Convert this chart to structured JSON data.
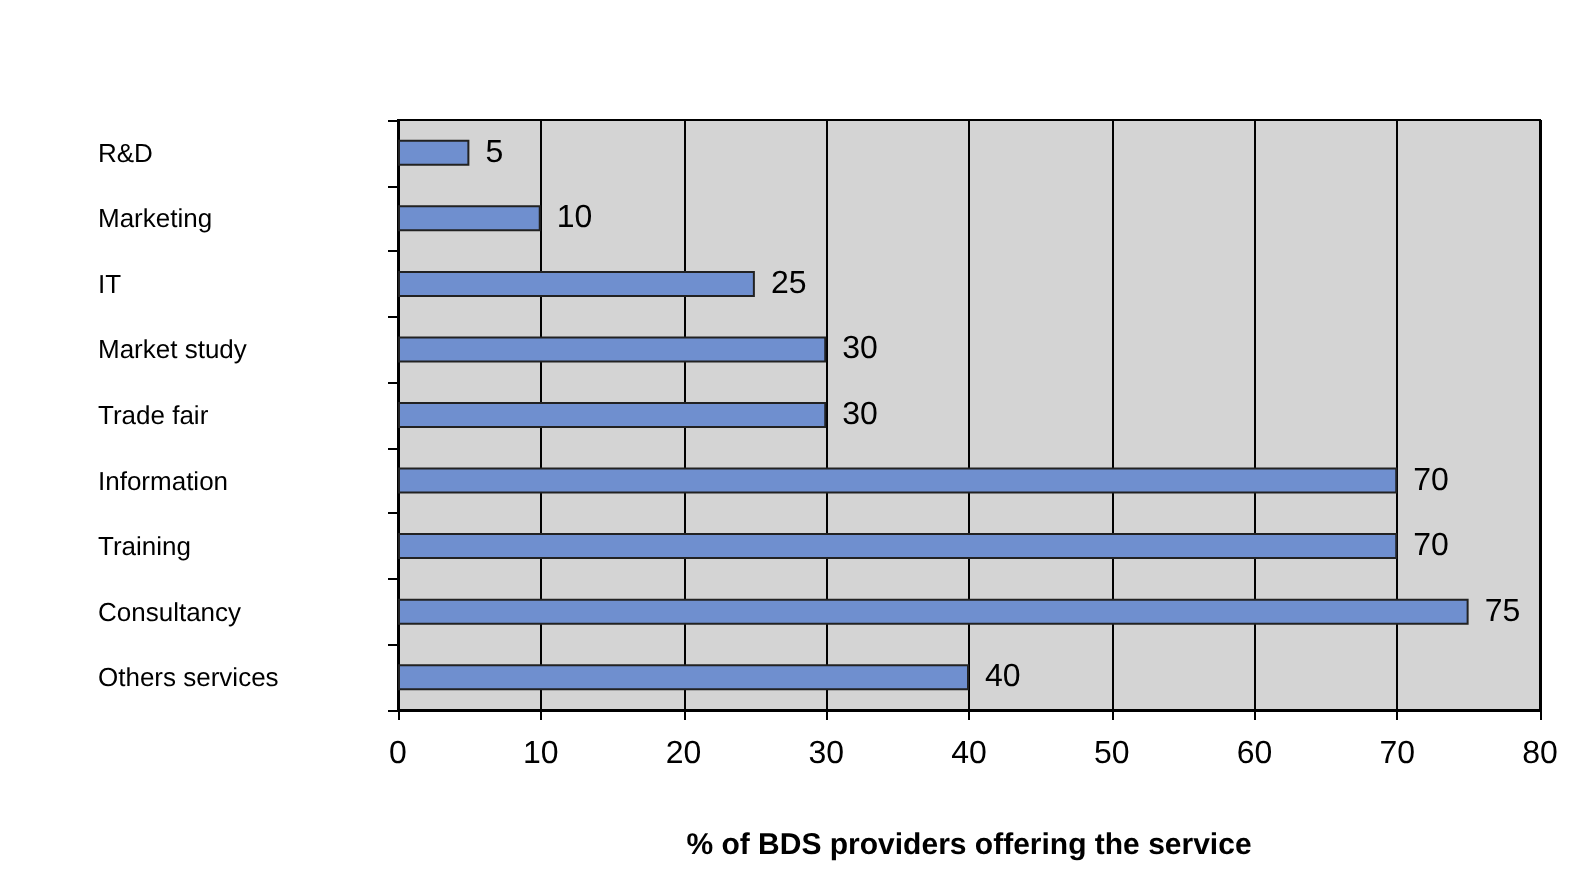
{
  "chart_data": {
    "type": "bar",
    "orientation": "horizontal",
    "xlabel": "% of BDS providers offering the service",
    "categories": [
      "R&D",
      "Marketing",
      "IT",
      "Market study",
      "Trade fair",
      "Information",
      "Training",
      "Consultancy",
      "Others services"
    ],
    "values": [
      5,
      10,
      25,
      30,
      30,
      70,
      70,
      75,
      40
    ],
    "color": "#6f8fcf",
    "xlim": [
      0,
      80
    ],
    "xticks": [
      0,
      10,
      20,
      30,
      40,
      50,
      60,
      70,
      80
    ],
    "grid": "x",
    "data_labels": true
  }
}
